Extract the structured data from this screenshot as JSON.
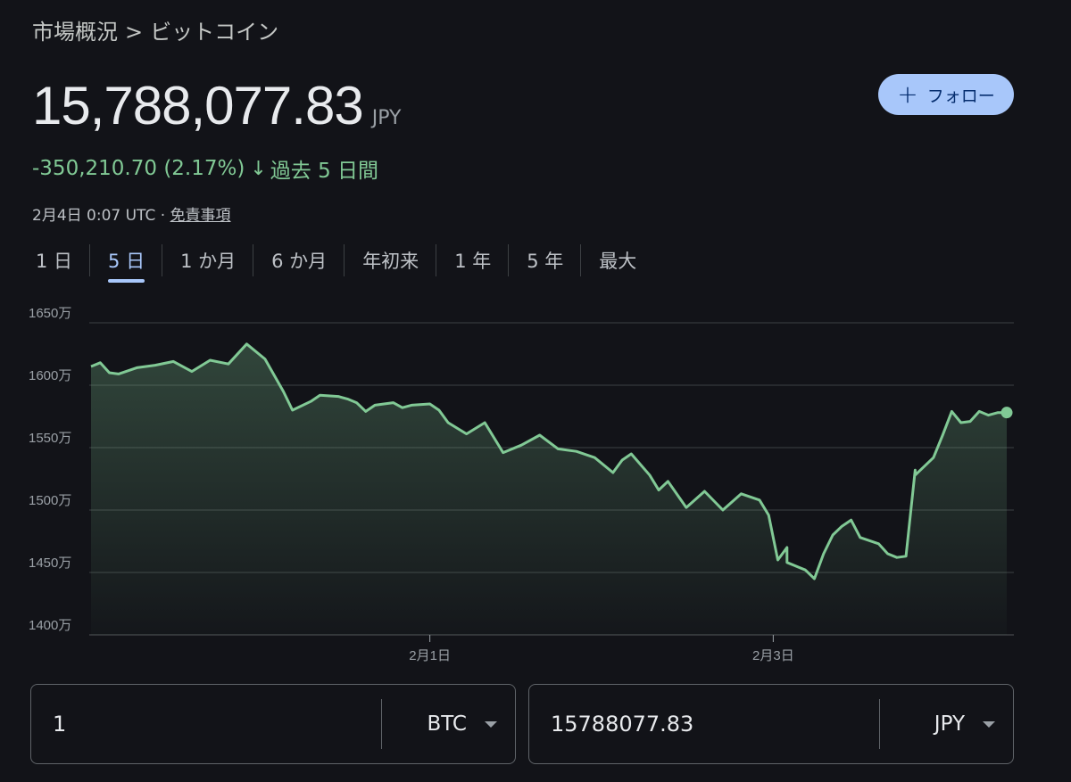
{
  "breadcrumb": {
    "parent": "市場概況",
    "separator": ">",
    "current": "ビットコイン"
  },
  "price": {
    "value": "15,788,077.83",
    "currency": "JPY"
  },
  "follow": {
    "icon": "plus-icon",
    "label": "フォロー"
  },
  "change": {
    "amount": "-350,210.70",
    "percent": "(2.17%)",
    "arrow_icon": "arrow-down-icon",
    "period": "過去 5 日間"
  },
  "timestamp": {
    "time": "2月4日 0:07 UTC",
    "separator": "·",
    "disclaimer": "免責事項"
  },
  "tabs": [
    {
      "label": "1 日",
      "active": false
    },
    {
      "label": "5 日",
      "active": true
    },
    {
      "label": "1 か月",
      "active": false
    },
    {
      "label": "6 か月",
      "active": false
    },
    {
      "label": "年初来",
      "active": false
    },
    {
      "label": "1 年",
      "active": false
    },
    {
      "label": "5 年",
      "active": false
    },
    {
      "label": "最大",
      "active": false
    }
  ],
  "chart_data": {
    "type": "area",
    "y_tick_labels": [
      "1650万",
      "1600万",
      "1550万",
      "1500万",
      "1450万",
      "1400万"
    ],
    "y_ticks": [
      16500000,
      16000000,
      15500000,
      15000000,
      14500000,
      14000000
    ],
    "ylim": [
      14000000,
      16500000
    ],
    "x_tick_labels": [
      "2月1日",
      "2月3日"
    ],
    "x_tick_positions": [
      0.37,
      0.745
    ],
    "grid": true,
    "colors": {
      "line": "#81c995",
      "grid": "#3c4043",
      "text": "#9aa0a6"
    },
    "x": [
      0,
      0.01,
      0.02,
      0.03,
      0.05,
      0.07,
      0.09,
      0.11,
      0.13,
      0.15,
      0.17,
      0.19,
      0.21,
      0.22,
      0.24,
      0.25,
      0.27,
      0.28,
      0.29,
      0.3,
      0.31,
      0.33,
      0.34,
      0.35,
      0.37,
      0.38,
      0.39,
      0.41,
      0.43,
      0.45,
      0.47,
      0.49,
      0.51,
      0.53,
      0.55,
      0.57,
      0.58,
      0.59,
      0.61,
      0.62,
      0.63,
      0.65,
      0.67,
      0.69,
      0.71,
      0.73,
      0.74,
      0.75,
      0.76,
      0.76,
      0.78,
      0.79,
      0.8,
      0.81,
      0.82,
      0.83,
      0.84,
      0.86,
      0.87,
      0.88,
      0.89,
      0.9,
      0.9,
      0.92,
      0.93,
      0.94,
      0.95,
      0.96,
      0.97,
      0.98,
      0.99,
      1
    ],
    "values": [
      16150000,
      16180000,
      16100000,
      16090000,
      16140000,
      16160000,
      16190000,
      16110000,
      16200000,
      16170000,
      16330000,
      16210000,
      15950000,
      15800000,
      15870000,
      15920000,
      15910000,
      15890000,
      15860000,
      15790000,
      15840000,
      15860000,
      15820000,
      15840000,
      15850000,
      15800000,
      15700000,
      15610000,
      15700000,
      15460000,
      15520000,
      15600000,
      15490000,
      15470000,
      15420000,
      15300000,
      15400000,
      15450000,
      15280000,
      15160000,
      15230000,
      15020000,
      15150000,
      15000000,
      15130000,
      15080000,
      14960000,
      14600000,
      14700000,
      14580000,
      14520000,
      14450000,
      14650000,
      14800000,
      14870000,
      14920000,
      14780000,
      14730000,
      14650000,
      14620000,
      14630000,
      15320000,
      15280000,
      15420000,
      15600000,
      15790000,
      15700000,
      15710000,
      15790000,
      15760000,
      15780000,
      15781000
    ]
  },
  "converter": {
    "from": {
      "amount": "1",
      "unit": "BTC"
    },
    "to": {
      "amount": "15788077.83",
      "unit": "JPY"
    }
  }
}
